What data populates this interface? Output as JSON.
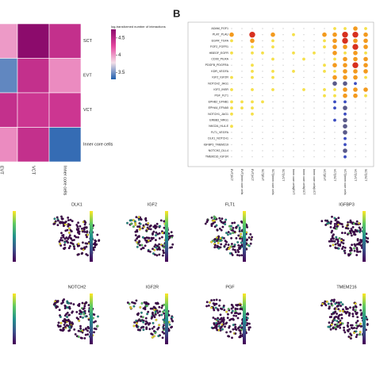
{
  "chart_data": [
    {
      "type": "heatmap",
      "colorbar_title": "log-transformed number of interactions",
      "rows": [
        "SCT",
        "EVT",
        "VCT",
        "Inner core cells"
      ],
      "columns": [
        "EVT",
        "VCT",
        "Inner core cells"
      ],
      "values": [
        [
          4.0,
          4.75,
          4.45
        ],
        [
          3.45,
          4.45,
          4.05
        ],
        [
          4.45,
          4.4,
          4.4
        ],
        [
          4.05,
          4.45,
          3.35
        ]
      ],
      "clim": [
        3.3,
        4.75
      ],
      "cticks": [
        3.5,
        4,
        4.5
      ],
      "colors": [
        "#1f5fae",
        "#f4dfe8",
        "#e4469f",
        "#8c0b6c"
      ]
    },
    {
      "type": "dot",
      "panel_label": "B",
      "rows": [
        "ADAM_FGF1",
        "PLAT_PLAU",
        "EGFR_TGFA",
        "FGF2_FGFR1",
        "HBEGF_EGFR",
        "CD99_PILRA",
        "PDGFB_PDGFRA",
        "KDR_VEGFA",
        "IGF2_IGF2R",
        "NOTCH2_JAG1",
        "IGF2_INSR",
        "PGF_FLT1",
        "EPHB2_EFNB1",
        "EPHA4_EFNA5",
        "NOTCH1_JAG1",
        "ERBB3_NRG1",
        "NKG2A_HLA-E",
        "FLT1_VEGFA",
        "DLK1_NOTCH1",
        "IGFBP3_TMEM219",
        "NOTCH2_DLL4",
        "TMEM216_IGF1R"
      ],
      "categories": [
        "EVT|SCT",
        "EVT|Inner core cells",
        "EVT|VCT",
        "SCT|EVT",
        "SCT|Inner core cells",
        "SCT|VCT",
        "Inner core cells|EVT",
        "Inner core cells|SCT",
        "Inner core cells|VCT",
        "VCT|EVT",
        "VCT|SCT",
        "VCT|Inner core cells",
        "VCT|VCT",
        "SCT|SCT"
      ],
      "values": [
        [
          0,
          0,
          0,
          0,
          0,
          0,
          0,
          0,
          0,
          0,
          1,
          1,
          2,
          1
        ],
        [
          2,
          0,
          3,
          0,
          2,
          0,
          1,
          0,
          0,
          2,
          2,
          3,
          3,
          2
        ],
        [
          1,
          0,
          2,
          0,
          1,
          0,
          0,
          0,
          0,
          1,
          2,
          3,
          2,
          2
        ],
        [
          0,
          0,
          1,
          0,
          1,
          0,
          0,
          0,
          0,
          1,
          2,
          2,
          3,
          2
        ],
        [
          1,
          0,
          1,
          1,
          0,
          0,
          1,
          0,
          1,
          0,
          2,
          1,
          2,
          1
        ],
        [
          0,
          0,
          0,
          0,
          1,
          0,
          0,
          1,
          0,
          0,
          1,
          2,
          2,
          2
        ],
        [
          0,
          0,
          1,
          0,
          0,
          0,
          0,
          0,
          0,
          1,
          2,
          2,
          3,
          2
        ],
        [
          0,
          0,
          1,
          0,
          1,
          0,
          1,
          0,
          0,
          1,
          1,
          2,
          2,
          2
        ],
        [
          1,
          0,
          1,
          0,
          1,
          0,
          0,
          0,
          0,
          0,
          2,
          2,
          2,
          1
        ],
        [
          0,
          0,
          0,
          0,
          0,
          0,
          0,
          0,
          0,
          0,
          -2,
          -2,
          -1,
          0
        ],
        [
          1,
          0,
          1,
          0,
          1,
          0,
          0,
          1,
          0,
          1,
          1,
          2,
          2,
          2
        ],
        [
          0,
          0,
          0,
          0,
          0,
          0,
          0,
          0,
          0,
          1,
          1,
          2,
          2,
          1
        ],
        [
          1,
          1,
          1,
          1,
          0,
          0,
          0,
          0,
          0,
          0,
          -1,
          -1,
          0,
          0
        ],
        [
          1,
          1,
          1,
          0,
          0,
          0,
          0,
          0,
          0,
          0,
          -1,
          -2,
          0,
          0
        ],
        [
          1,
          0,
          1,
          0,
          0,
          0,
          0,
          0,
          0,
          0,
          0,
          -1,
          0,
          0
        ],
        [
          0,
          0,
          0,
          0,
          0,
          0,
          0,
          0,
          0,
          0,
          -1,
          -2,
          0,
          0
        ],
        [
          1,
          0,
          0,
          0,
          0,
          0,
          0,
          0,
          0,
          0,
          0,
          -2,
          0,
          0
        ],
        [
          0,
          0,
          0,
          0,
          0,
          0,
          0,
          0,
          0,
          0,
          0,
          -2,
          0,
          0
        ],
        [
          0,
          0,
          0,
          0,
          0,
          0,
          0,
          0,
          0,
          0,
          0,
          -1,
          0,
          0
        ],
        [
          0,
          0,
          0,
          0,
          0,
          0,
          0,
          0,
          0,
          0,
          0,
          -1,
          0,
          0
        ],
        [
          0,
          0,
          0,
          0,
          0,
          0,
          0,
          0,
          0,
          0,
          0,
          -2,
          0,
          0
        ],
        [
          0,
          0,
          0,
          0,
          0,
          0,
          0,
          0,
          0,
          0,
          0,
          -1,
          0,
          0
        ]
      ],
      "positive_colors": [
        "#f5e04a",
        "#f39a1e",
        "#d7301f"
      ],
      "negative_colors": [
        "#3b4cc0",
        "#5a5a8a"
      ],
      "zero_color": "#bdbdbd"
    },
    {
      "type": "feature-umap",
      "panels": [
        [
          "DLK1",
          "IGF2",
          "FLT1",
          "IGFBP3"
        ],
        [
          "NOTCH2",
          "IGF2R",
          "PGF",
          "TMEM216"
        ]
      ],
      "colors": [
        "#440154",
        "#3b528b",
        "#21918c",
        "#5ec962",
        "#fde725"
      ]
    }
  ]
}
